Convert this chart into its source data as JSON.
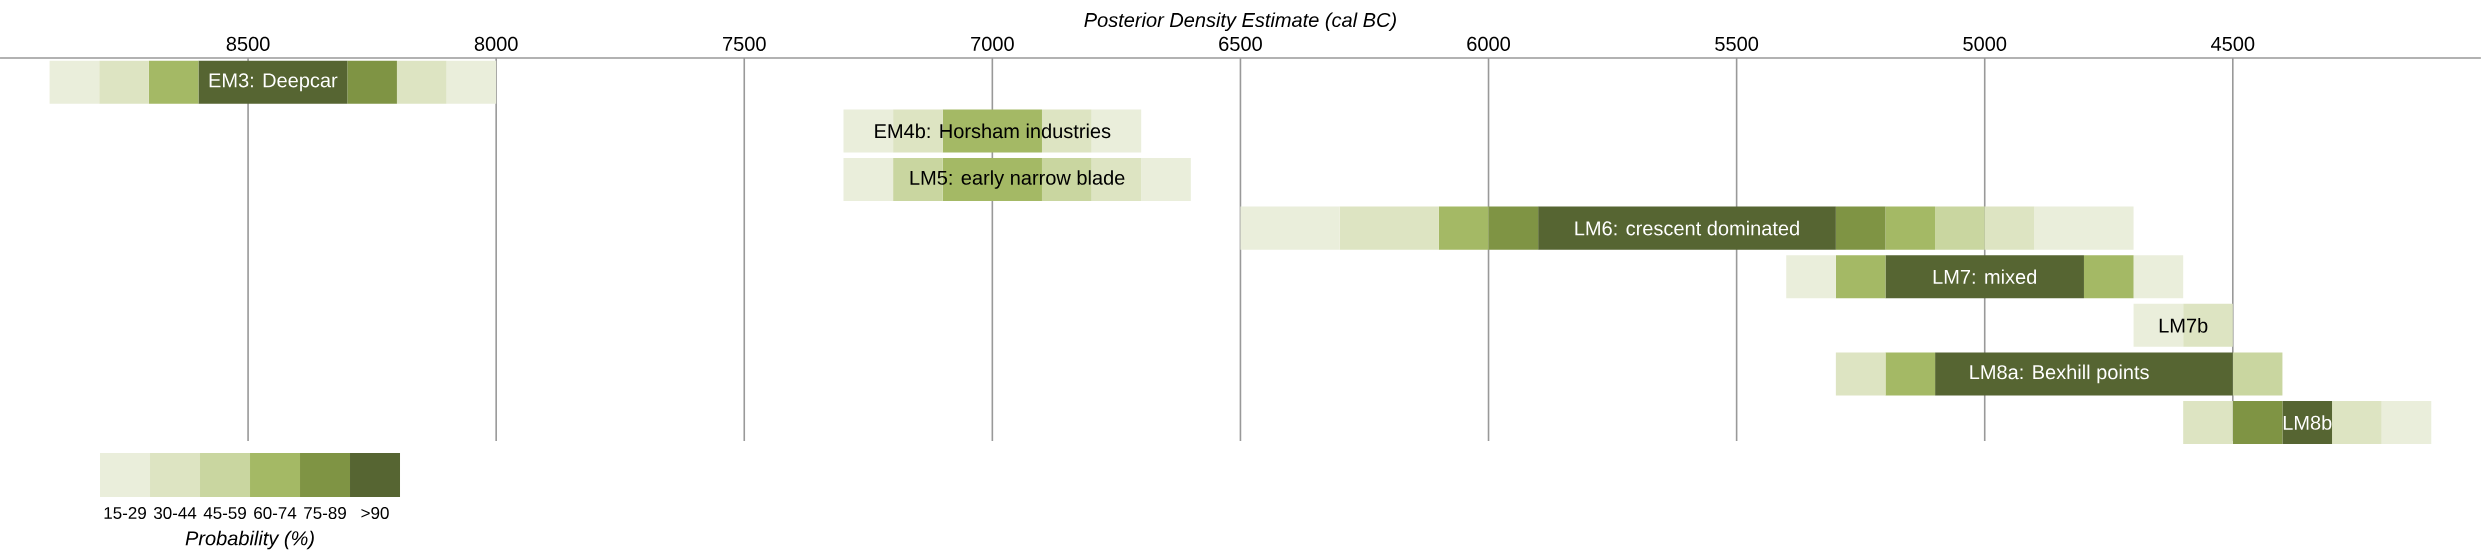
{
  "chart_data": [
    {
      "type": "bar",
      "orientation": "horizontal",
      "xlabel": "Posterior Density Estimate (cal BC)",
      "categories": [
        "EM3: Deepcar",
        "EM4b: Horsham industries",
        "LM5: early narrow blade",
        "LM6: crescent dominated",
        "LM7: mixed",
        "LM7b",
        "LM8a: Bexhill points",
        "LM8b"
      ],
      "series": [
        {
          "base": [
            8000,
            6700,
            6600,
            4700,
            4600,
            4500,
            4400,
            4100
          ],
          "values": [
            100,
            100,
            100,
            200,
            100,
            100,
            100,
            100
          ],
          "colors": [
            "#eaeedb",
            "#eaeedb",
            "#eaeedb",
            "#eaeedb",
            "#eaeedb",
            "#dde4c2",
            "#c9d6a0",
            "#eaeedb"
          ]
        },
        {
          "base": [
            8100,
            6800,
            6700,
            4900,
            4700,
            4600,
            4500,
            4200
          ],
          "values": [
            100,
            100,
            100,
            100,
            100,
            100,
            600,
            100
          ],
          "colors": [
            "#dde4c2",
            "#dde4c2",
            "#dde4c2",
            "#dde4c2",
            "#a4b965",
            "#eaeedb",
            "#566532",
            "#dde4c2"
          ]
        },
        {
          "base": [
            8200,
            6900,
            6800,
            5000,
            4800,
            null,
            5100,
            4300
          ],
          "values": [
            100,
            200,
            100,
            100,
            400,
            null,
            100,
            100
          ],
          "colors": [
            "#7f9444",
            "#a4b965",
            "#c9d6a0",
            "#c9d6a0",
            "#566532",
            null,
            "#a4b965",
            "#566532"
          ]
        },
        {
          "base": [
            8300,
            7100,
            6900,
            5100,
            5200,
            null,
            5200,
            4400
          ],
          "values": [
            300,
            100,
            200,
            100,
            100,
            null,
            100,
            100
          ],
          "colors": [
            "#566532",
            "#dde4c2",
            "#a4b965",
            "#a4b965",
            "#a4b965",
            null,
            "#dde4c2",
            "#7f9444"
          ]
        },
        {
          "base": [
            8600,
            7200,
            7100,
            5200,
            5300,
            null,
            null,
            4500
          ],
          "values": [
            100,
            100,
            100,
            100,
            100,
            null,
            null,
            100
          ],
          "colors": [
            "#a4b965",
            "#eaeedb",
            "#c9d6a0",
            "#7f9444",
            "#eaeedb",
            null,
            null,
            "#dde4c2"
          ]
        },
        {
          "base": [
            8700,
            null,
            7200,
            5300,
            null,
            null,
            null,
            null
          ],
          "values": [
            100,
            null,
            100,
            600,
            null,
            null,
            null,
            null
          ],
          "colors": [
            "#dde4c2",
            null,
            "#eaeedb",
            "#566532",
            null,
            null,
            null,
            null
          ]
        },
        {
          "base": [
            8800,
            null,
            null,
            5900,
            null,
            null,
            null,
            null
          ],
          "values": [
            100,
            null,
            null,
            100,
            null,
            null,
            null,
            null
          ],
          "colors": [
            "#eaeedb",
            null,
            null,
            "#7f9444",
            null,
            null,
            null,
            null
          ]
        },
        {
          "base": [
            null,
            null,
            null,
            6000,
            null,
            null,
            null,
            null
          ],
          "values": [
            null,
            null,
            null,
            100,
            null,
            null,
            null,
            null
          ],
          "colors": [
            null,
            null,
            null,
            "#a4b965",
            null,
            null,
            null,
            null
          ]
        },
        {
          "base": [
            null,
            null,
            null,
            6100,
            null,
            null,
            null,
            null
          ],
          "values": [
            null,
            null,
            null,
            200,
            null,
            null,
            null,
            null
          ],
          "colors": [
            null,
            null,
            null,
            "#dde4c2",
            null,
            null,
            null,
            null
          ]
        },
        {
          "base": [
            null,
            null,
            null,
            6300,
            null,
            null,
            null,
            null
          ],
          "values": [
            null,
            null,
            null,
            200,
            null,
            null,
            null,
            null
          ],
          "colors": [
            null,
            null,
            null,
            "#eaeedb",
            null,
            null,
            null,
            null
          ]
        }
      ],
      "xlim": [
        9000,
        4000
      ],
      "xticks": [
        8500,
        8000,
        7500,
        7000,
        6500,
        6000,
        5500,
        5000,
        4500
      ],
      "grid": "x"
    },
    {
      "type": "other",
      "xlabel": "Probability (%)",
      "categories": [
        "15-29",
        "30-44",
        "45-59",
        "60-74",
        "75-89",
        ">90"
      ],
      "colors": [
        "#eaeedb",
        "#dde4c2",
        "#c9d6a0",
        "#a4b965",
        "#7f9444",
        "#566532"
      ]
    }
  ]
}
